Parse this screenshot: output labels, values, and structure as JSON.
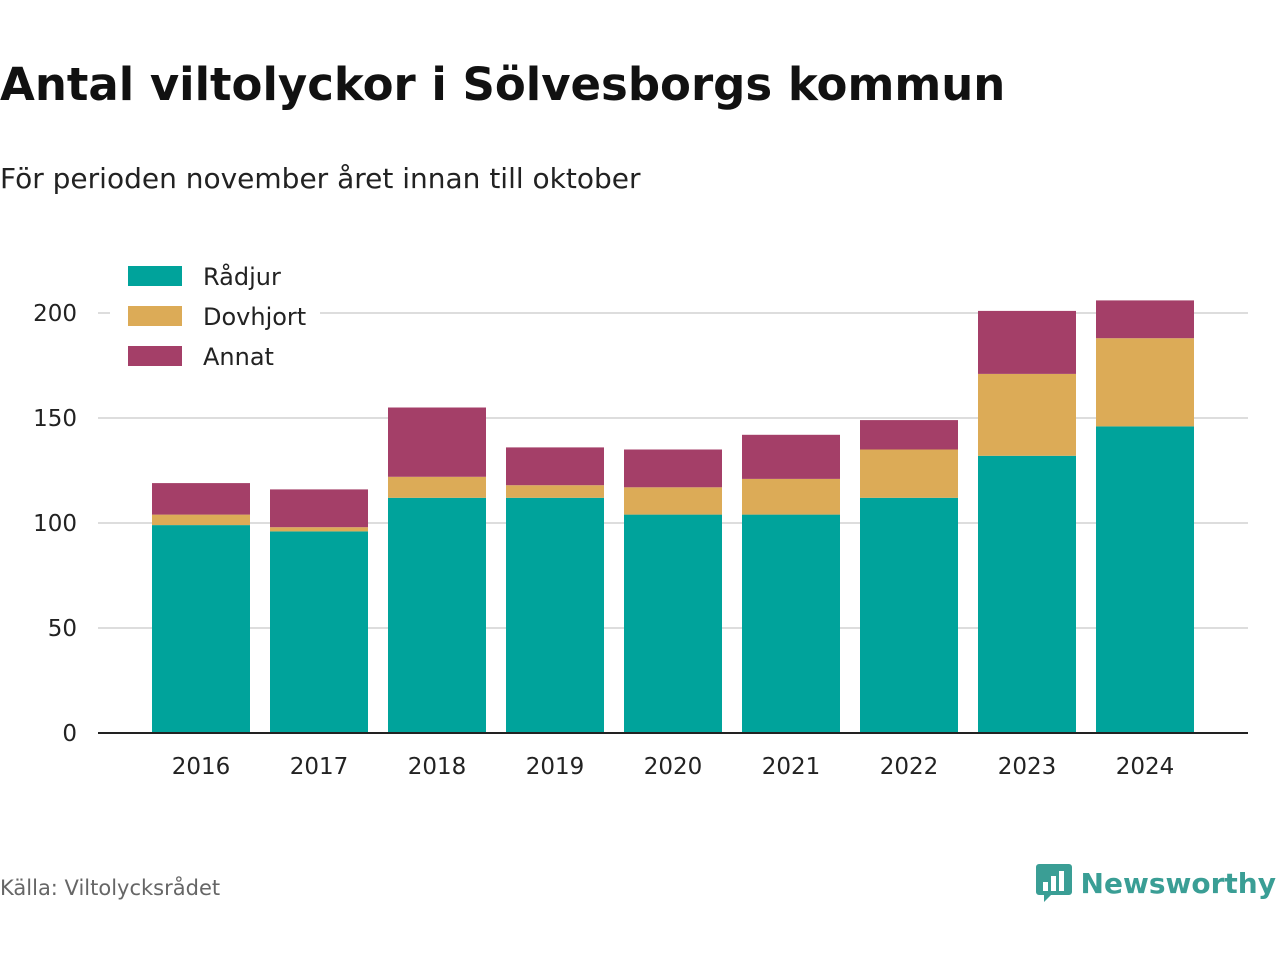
{
  "title": "Antal viltolyckor i Sölvesborgs kommun",
  "subtitle": "För perioden november året innan till oktober",
  "source": "Källa: Viltolycksrådet",
  "brand": "Newsworthy",
  "brand_icon": "newsworthy-logo-icon",
  "colors": {
    "Rådjur": "#00a39b",
    "Dovhjort": "#dcab57",
    "Annat": "#a43f68",
    "grid": "#dddddd",
    "axis": "#222222"
  },
  "chart_data": {
    "type": "bar",
    "stacked": true,
    "categories": [
      "2016",
      "2017",
      "2018",
      "2019",
      "2020",
      "2021",
      "2022",
      "2023",
      "2024"
    ],
    "series": [
      {
        "name": "Rådjur",
        "values": [
          99,
          96,
          112,
          112,
          104,
          104,
          112,
          132,
          146
        ]
      },
      {
        "name": "Dovhjort",
        "values": [
          5,
          2,
          10,
          6,
          13,
          17,
          23,
          39,
          42
        ]
      },
      {
        "name": "Annat",
        "values": [
          15,
          18,
          33,
          18,
          18,
          21,
          14,
          30,
          18
        ]
      }
    ],
    "ylim": [
      0,
      210
    ],
    "yticks": [
      0,
      50,
      100,
      150,
      200
    ],
    "grid": true,
    "legend_position": "top-left"
  }
}
